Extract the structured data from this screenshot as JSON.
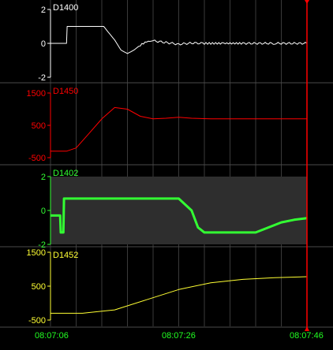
{
  "panels": [
    {
      "id": "D1400",
      "name": "D1400",
      "color": "#ffffff",
      "ticks": {
        "top": "2",
        "mid": "0",
        "bottom": "-2"
      },
      "ylim": [
        -2,
        2
      ],
      "highlight_band": false
    },
    {
      "id": "D1450",
      "name": "D1450",
      "color": "#ff0000",
      "ticks": {
        "top": "1500",
        "mid": "500",
        "bottom": "-500"
      },
      "ylim": [
        -500,
        1500
      ],
      "highlight_band": false
    },
    {
      "id": "D1402",
      "name": "D1402",
      "color": "#33ff33",
      "ticks": {
        "top": "2",
        "mid": "0",
        "bottom": "-2"
      },
      "ylim": [
        -2,
        2
      ],
      "highlight_band": true
    },
    {
      "id": "D1452",
      "name": "D1452",
      "color": "#ffff33",
      "ticks": {
        "top": "1500",
        "mid": "500",
        "bottom": "-500"
      },
      "ylim": [
        -500,
        1500
      ],
      "highlight_band": false
    }
  ],
  "time_axis": {
    "labels": [
      "08:07:06",
      "08:07:26",
      "08:07:46"
    ],
    "color": "#22ff22"
  },
  "cursor": {
    "color": "#ff0000"
  },
  "chart_data": [
    {
      "type": "line",
      "name": "D1400",
      "x_unit": "s",
      "xlim": [
        0,
        40
      ],
      "ylim": [
        -2,
        2
      ],
      "series": [
        {
          "x": [
            0,
            2.5,
            2.6,
            8.3,
            8.5,
            10,
            11,
            12,
            13,
            14,
            15,
            16,
            18,
            20,
            22,
            24,
            27,
            30,
            35,
            40
          ],
          "y": [
            0,
            0,
            1,
            1,
            0.9,
            0.2,
            -0.4,
            -0.6,
            -0.4,
            -0.1,
            0.1,
            0.15,
            0.05,
            -0.05,
            0.02,
            0,
            0,
            0,
            0,
            0
          ]
        }
      ]
    },
    {
      "type": "line",
      "name": "D1450",
      "xlim": [
        0,
        40
      ],
      "ylim": [
        -500,
        1500
      ],
      "series": [
        {
          "x": [
            0,
            2.5,
            4,
            6,
            8,
            10,
            12,
            14,
            16,
            18,
            20,
            22,
            25,
            30,
            40
          ],
          "y": [
            -300,
            -300,
            -200,
            250,
            700,
            1050,
            1000,
            780,
            700,
            720,
            750,
            720,
            700,
            700,
            700
          ]
        }
      ]
    },
    {
      "type": "line",
      "name": "D1402",
      "xlim": [
        0,
        40
      ],
      "ylim": [
        -2,
        2
      ],
      "series": [
        {
          "x": [
            0,
            1.5,
            1.6,
            2,
            2.1,
            2.5,
            20,
            22,
            23,
            24,
            27,
            30,
            32,
            34,
            36,
            38,
            40
          ],
          "y": [
            -0.3,
            -0.3,
            -1.3,
            -1.3,
            0.7,
            0.7,
            0.7,
            0,
            -1,
            -1.3,
            -1.3,
            -1.3,
            -1.3,
            -1.0,
            -0.7,
            -0.55,
            -0.45
          ]
        }
      ]
    },
    {
      "type": "line",
      "name": "D1452",
      "xlim": [
        0,
        40
      ],
      "ylim": [
        -500,
        1500
      ],
      "series": [
        {
          "x": [
            0,
            5,
            10,
            15,
            20,
            25,
            30,
            35,
            40
          ],
          "y": [
            -300,
            -300,
            -200,
            100,
            400,
            600,
            700,
            750,
            780
          ]
        }
      ]
    }
  ]
}
